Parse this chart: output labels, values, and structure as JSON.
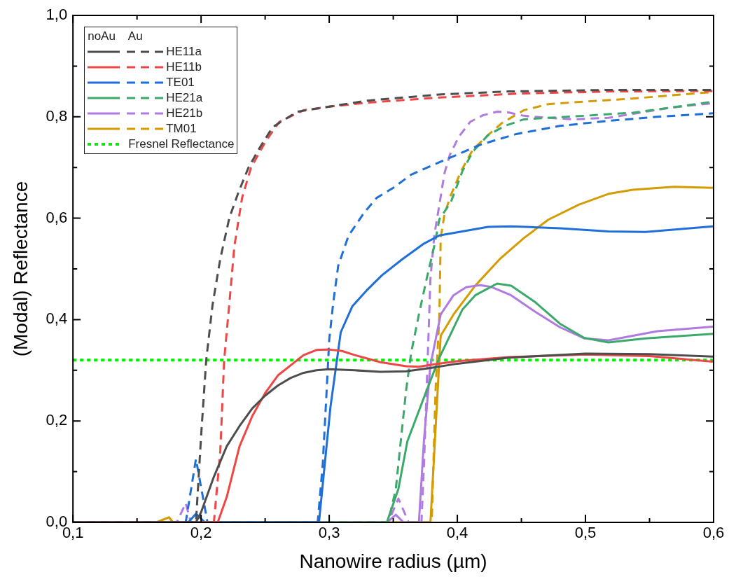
{
  "chart_data": {
    "type": "line",
    "xlabel": "Nanowire radius (µm)",
    "ylabel": "(Modal) Reflectance",
    "legend_title": "noAu    Au",
    "legend": "top left",
    "marker": "none",
    "grid": false,
    "xlim": [
      0.1,
      0.6
    ],
    "ylim": [
      0,
      1
    ],
    "xticks": [
      {
        "value": 0.1,
        "label": "0,1"
      },
      {
        "value": 0.15,
        "label": null
      },
      {
        "value": 0.2,
        "label": "0,2"
      },
      {
        "value": 0.25,
        "label": null
      },
      {
        "value": 0.3,
        "label": "0,3"
      },
      {
        "value": 0.35,
        "label": null
      },
      {
        "value": 0.4,
        "label": "0,4"
      },
      {
        "value": 0.45,
        "label": null
      },
      {
        "value": 0.5,
        "label": "0,5"
      },
      {
        "value": 0.55,
        "label": null
      },
      {
        "value": 0.6,
        "label": "0,6"
      }
    ],
    "yticks": [
      {
        "value": 0,
        "label": "0,0"
      },
      {
        "value": 0.1,
        "label": null
      },
      {
        "value": 0.2,
        "label": "0,2"
      },
      {
        "value": 0.3,
        "label": null
      },
      {
        "value": 0.4,
        "label": "0,4"
      },
      {
        "value": 0.5,
        "label": null
      },
      {
        "value": 0.6,
        "label": "0,6"
      },
      {
        "value": 0.7,
        "label": null
      },
      {
        "value": 0.8,
        "label": "0,8"
      },
      {
        "value": 0.9,
        "label": null
      },
      {
        "value": 1.0,
        "label": "1,0"
      }
    ],
    "ref_lines": [
      {
        "axis": "y",
        "value": 0.32,
        "label": "Fresnel Reflectance",
        "color": "#00ee00",
        "line_style": "dotted"
      }
    ],
    "series": [
      {
        "color": "#4d4d4d",
        "line_style": "solid",
        "x": [
          0.1,
          0.196,
          0.2,
          0.21,
          0.22,
          0.23,
          0.24,
          0.25,
          0.26,
          0.27,
          0.28,
          0.29,
          0.3,
          0.32,
          0.34,
          0.36,
          0.38,
          0.4,
          0.44,
          0.5,
          0.55,
          0.6
        ],
        "values": [
          0,
          0,
          0.02,
          0.09,
          0.15,
          0.19,
          0.225,
          0.25,
          0.27,
          0.285,
          0.295,
          0.3,
          0.302,
          0.3,
          0.297,
          0.298,
          0.305,
          0.313,
          0.325,
          0.333,
          0.332,
          0.327
        ]
      },
      {
        "name": "HE11a",
        "color": "#4d4d4d",
        "line_style": "dashed",
        "x": [
          0.1,
          0.196,
          0.2,
          0.204,
          0.209,
          0.215,
          0.222,
          0.229,
          0.237,
          0.246,
          0.256,
          0.275,
          0.3,
          0.33,
          0.386,
          0.44,
          0.52,
          0.6
        ],
        "values": [
          0,
          0,
          0.17,
          0.32,
          0.43,
          0.52,
          0.6,
          0.65,
          0.7,
          0.74,
          0.78,
          0.81,
          0.82,
          0.832,
          0.844,
          0.85,
          0.853,
          0.853
        ]
      },
      {
        "color": "#f04545",
        "line_style": "solid",
        "x": [
          0.1,
          0.213,
          0.22,
          0.23,
          0.24,
          0.25,
          0.26,
          0.27,
          0.28,
          0.29,
          0.3,
          0.31,
          0.32,
          0.34,
          0.36,
          0.37,
          0.38,
          0.4,
          0.44,
          0.5,
          0.55,
          0.6
        ],
        "values": [
          0,
          0,
          0.05,
          0.15,
          0.21,
          0.255,
          0.29,
          0.31,
          0.33,
          0.34,
          0.341,
          0.338,
          0.33,
          0.316,
          0.308,
          0.307,
          0.311,
          0.318,
          0.326,
          0.331,
          0.328,
          0.317
        ]
      },
      {
        "name": "HE11b",
        "color": "#f04545",
        "line_style": "dashed",
        "x": [
          0.1,
          0.21,
          0.215,
          0.218,
          0.222,
          0.226,
          0.232,
          0.239,
          0.25,
          0.261,
          0.28,
          0.3,
          0.33,
          0.386,
          0.45,
          0.52,
          0.6
        ],
        "values": [
          0,
          0,
          0.14,
          0.32,
          0.43,
          0.545,
          0.64,
          0.7,
          0.75,
          0.79,
          0.813,
          0.82,
          0.828,
          0.838,
          0.846,
          0.85,
          0.851
        ]
      },
      {
        "color": "#1f6fd9",
        "line_style": "solid",
        "x": [
          0.1,
          0.19,
          0.196,
          0.203,
          0.292,
          0.301,
          0.309,
          0.318,
          0.329,
          0.341,
          0.357,
          0.374,
          0.386,
          0.424,
          0.442,
          0.48,
          0.518,
          0.547,
          0.6
        ],
        "values": [
          0,
          0,
          0.017,
          0,
          0,
          0.228,
          0.375,
          0.426,
          0.457,
          0.487,
          0.519,
          0.55,
          0.566,
          0.583,
          0.584,
          0.58,
          0.574,
          0.573,
          0.584
        ]
      },
      {
        "name": "TE01",
        "color": "#1f6fd9",
        "line_style": "dashed",
        "x": [
          0.1,
          0.188,
          0.196,
          0.205,
          0.291,
          0.295,
          0.298,
          0.3,
          0.303,
          0.307,
          0.315,
          0.327,
          0.337,
          0.35,
          0.364,
          0.382,
          0.395,
          0.418,
          0.446,
          0.48,
          0.518,
          0.556,
          0.6
        ],
        "values": [
          0,
          0,
          0.125,
          0,
          0,
          0.116,
          0.26,
          0.36,
          0.43,
          0.506,
          0.565,
          0.61,
          0.64,
          0.66,
          0.686,
          0.706,
          0.72,
          0.745,
          0.766,
          0.782,
          0.792,
          0.8,
          0.807
        ]
      },
      {
        "color": "#3aaa6a",
        "line_style": "solid",
        "x": [
          0.1,
          0.345,
          0.354,
          0.361,
          0.376,
          0.386,
          0.404,
          0.414,
          0.431,
          0.442,
          0.461,
          0.48,
          0.499,
          0.518,
          0.547,
          0.6
        ],
        "values": [
          0,
          0,
          0.066,
          0.16,
          0.26,
          0.325,
          0.42,
          0.448,
          0.471,
          0.467,
          0.434,
          0.392,
          0.364,
          0.355,
          0.363,
          0.372
        ]
      },
      {
        "name": "HE21a",
        "color": "#3aaa6a",
        "line_style": "dashed",
        "x": [
          0.1,
          0.346,
          0.352,
          0.356,
          0.36,
          0.364,
          0.37,
          0.376,
          0.382,
          0.386,
          0.395,
          0.404,
          0.412,
          0.424,
          0.437,
          0.452,
          0.471,
          0.499,
          0.524,
          0.537,
          0.566,
          0.6
        ],
        "values": [
          0,
          0,
          0.066,
          0.164,
          0.26,
          0.335,
          0.41,
          0.48,
          0.545,
          0.598,
          0.632,
          0.693,
          0.731,
          0.764,
          0.782,
          0.795,
          0.798,
          0.802,
          0.806,
          0.808,
          0.818,
          0.83
        ]
      },
      {
        "color": "#b07be0",
        "line_style": "solid",
        "x": [
          0.1,
          0.345,
          0.352,
          0.358,
          0.37,
          0.374,
          0.379,
          0.387,
          0.397,
          0.407,
          0.418,
          0.427,
          0.442,
          0.461,
          0.48,
          0.499,
          0.518,
          0.556,
          0.6
        ],
        "values": [
          0,
          0,
          0.015,
          0,
          0,
          0.164,
          0.31,
          0.41,
          0.448,
          0.464,
          0.468,
          0.464,
          0.448,
          0.415,
          0.385,
          0.363,
          0.359,
          0.377,
          0.386
        ]
      },
      {
        "name": "HE21b",
        "color": "#b07be0",
        "line_style": "dashed",
        "x": [
          0.1,
          0.181,
          0.188,
          0.192,
          0.346,
          0.354,
          0.362,
          0.372,
          0.374,
          0.376,
          0.379,
          0.382,
          0.386,
          0.39,
          0.394,
          0.401,
          0.41,
          0.42,
          0.431,
          0.439,
          0.452,
          0.471,
          0.49,
          0.518,
          0.528,
          0.566,
          0.6
        ],
        "values": [
          0,
          0,
          0.038,
          0,
          0,
          0.047,
          0,
          0,
          0.116,
          0.26,
          0.48,
          0.566,
          0.627,
          0.689,
          0.724,
          0.76,
          0.79,
          0.803,
          0.81,
          0.809,
          0.802,
          0.798,
          0.795,
          0.798,
          0.802,
          0.818,
          0.827
        ]
      },
      {
        "color": "#d49c00",
        "line_style": "solid",
        "x": [
          0.1,
          0.165,
          0.175,
          0.178,
          0.379,
          0.387,
          0.397,
          0.414,
          0.433,
          0.452,
          0.471,
          0.495,
          0.518,
          0.537,
          0.569,
          0.6
        ],
        "values": [
          0,
          0,
          0.01,
          0,
          0,
          0.368,
          0.41,
          0.467,
          0.519,
          0.561,
          0.597,
          0.627,
          0.648,
          0.656,
          0.662,
          0.66
        ]
      },
      {
        "name": "TM01",
        "color": "#d49c00",
        "line_style": "dashed",
        "x": [
          0.1,
          0.38,
          0.383,
          0.386,
          0.387,
          0.39,
          0.395,
          0.403,
          0.412,
          0.424,
          0.435,
          0.452,
          0.471,
          0.499,
          0.537,
          0.575,
          0.6
        ],
        "values": [
          0,
          0,
          0.26,
          0.41,
          0.561,
          0.608,
          0.646,
          0.693,
          0.735,
          0.764,
          0.788,
          0.813,
          0.825,
          0.83,
          0.836,
          0.844,
          0.849
        ]
      }
    ]
  }
}
